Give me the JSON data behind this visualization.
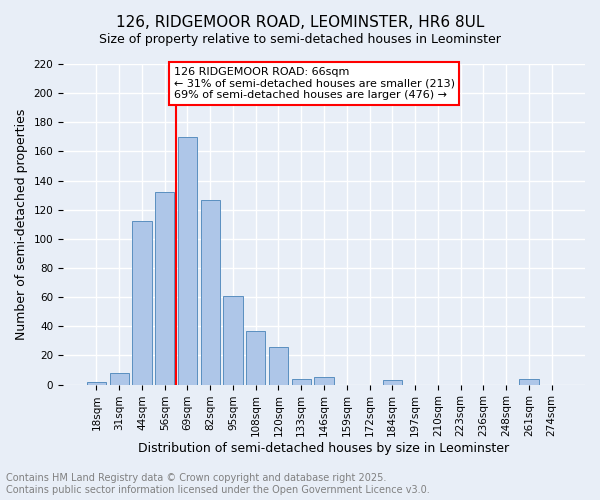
{
  "title": "126, RIDGEMOOR ROAD, LEOMINSTER, HR6 8UL",
  "subtitle": "Size of property relative to semi-detached houses in Leominster",
  "xlabel": "Distribution of semi-detached houses by size in Leominster",
  "ylabel": "Number of semi-detached properties",
  "bar_color": "#aec6e8",
  "bar_edge_color": "#5a8fc0",
  "background_color": "#e8eef7",
  "grid_color": "#ffffff",
  "categories": [
    "18sqm",
    "31sqm",
    "44sqm",
    "56sqm",
    "69sqm",
    "82sqm",
    "95sqm",
    "108sqm",
    "120sqm",
    "133sqm",
    "146sqm",
    "159sqm",
    "172sqm",
    "184sqm",
    "197sqm",
    "210sqm",
    "223sqm",
    "236sqm",
    "248sqm",
    "261sqm",
    "274sqm"
  ],
  "values": [
    2,
    8,
    112,
    132,
    170,
    127,
    61,
    37,
    26,
    4,
    5,
    0,
    0,
    3,
    0,
    0,
    0,
    0,
    0,
    4,
    0
  ],
  "ylim": [
    0,
    220
  ],
  "yticks": [
    0,
    20,
    40,
    60,
    80,
    100,
    120,
    140,
    160,
    180,
    200,
    220
  ],
  "property_label": "126 RIDGEMOOR ROAD: 66sqm",
  "pct_smaller": 31,
  "pct_larger": 69,
  "n_smaller": 213,
  "n_larger": 476,
  "vline_x": 3.5,
  "footer_line1": "Contains HM Land Registry data © Crown copyright and database right 2025.",
  "footer_line2": "Contains public sector information licensed under the Open Government Licence v3.0.",
  "title_fontsize": 11,
  "subtitle_fontsize": 9,
  "axis_label_fontsize": 9,
  "tick_fontsize": 7.5,
  "footer_fontsize": 7,
  "annotation_fontsize": 8
}
